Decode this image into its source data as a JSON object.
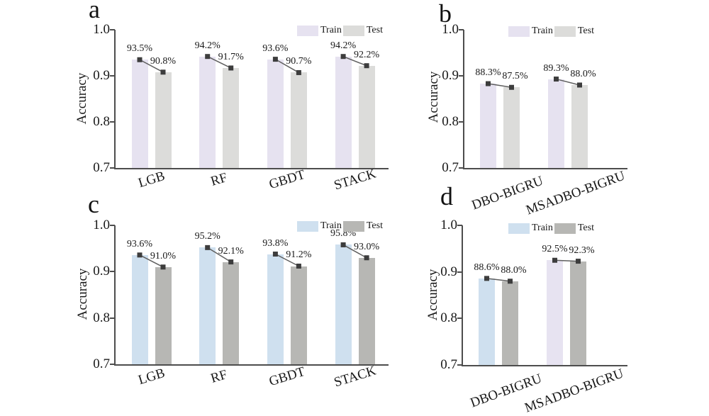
{
  "figure_title": "",
  "styles": {
    "axis_color": "#4d4d4d",
    "marker_color": "#3d3d3d",
    "connector_color": "#5f5f5f",
    "text_color": "#191919",
    "train_lavender": "#e6e2f0",
    "test_light_gray": "#dcdcda",
    "train_blue": "#cfe0ef",
    "test_dark_gray": "#b7b7b4"
  },
  "chart_data": [
    {
      "type": "bar",
      "panel_label": "a",
      "ylabel": "Accuracy",
      "ylim": [
        0.7,
        1.0
      ],
      "yticks": [
        "1.0",
        "0.9",
        "0.8",
        "0.7"
      ],
      "grid": false,
      "legend_position": "top-right",
      "categories": [
        "LGB",
        "RF",
        "GBDT",
        "STACK"
      ],
      "series": [
        {
          "name": "Train",
          "color": "#e6e2f0",
          "values": [
            93.5,
            94.2,
            93.6,
            94.2
          ],
          "labels": [
            "93.5%",
            "94.2%",
            "93.6%",
            "94.2%"
          ]
        },
        {
          "name": "Test",
          "color": "#dcdcda",
          "values": [
            90.8,
            91.7,
            90.7,
            92.2
          ],
          "labels": [
            "90.8%",
            "91.7%",
            "90.7%",
            "92.2%"
          ]
        }
      ]
    },
    {
      "type": "bar",
      "panel_label": "b",
      "ylabel": "Accuracy",
      "ylim": [
        0.7,
        1.0
      ],
      "yticks": [
        "1.0",
        "0.9",
        "0.8",
        "0.7"
      ],
      "grid": false,
      "legend_position": "top-center",
      "categories": [
        "DBO-BIGRU",
        "MSADBO-BIGRU"
      ],
      "series": [
        {
          "name": "Train",
          "color": "#e6e2f0",
          "values": [
            88.3,
            89.3
          ],
          "labels": [
            "88.3%",
            "89.3%"
          ]
        },
        {
          "name": "Test",
          "color": "#dcdcda",
          "values": [
            87.5,
            88.0
          ],
          "labels": [
            "87.5%",
            "88.0%"
          ]
        }
      ]
    },
    {
      "type": "bar",
      "panel_label": "c",
      "ylabel": "Accuracy",
      "ylim": [
        0.7,
        1.0
      ],
      "yticks": [
        "1.0",
        "0.9",
        "0.8",
        "0.7"
      ],
      "grid": false,
      "legend_position": "top-right",
      "categories": [
        "LGB",
        "RF",
        "GBDT",
        "STACK"
      ],
      "series": [
        {
          "name": "Train",
          "color": "#cfe0ef",
          "values": [
            93.6,
            95.2,
            93.8,
            95.8
          ],
          "labels": [
            "93.6%",
            "95.2%",
            "93.8%",
            "95.8%"
          ]
        },
        {
          "name": "Test",
          "color": "#b7b7b4",
          "values": [
            91.0,
            92.1,
            91.2,
            93.0
          ],
          "labels": [
            "91.0%",
            "92.1%",
            "91.2%",
            "93.0%"
          ]
        }
      ]
    },
    {
      "type": "bar",
      "panel_label": "d",
      "ylabel": "Accuracy",
      "ylim": [
        0.7,
        1.0
      ],
      "yticks": [
        "1.0",
        "0.9",
        "0.8",
        "0.7"
      ],
      "grid": false,
      "legend_position": "top-center",
      "categories": [
        "DBO-BIGRU",
        "MSADBO-BIGRU"
      ],
      "series": [
        {
          "name": "Train",
          "color": "#cfe0ef",
          "colors": [
            "#cfe0ef",
            "#e7e3f1"
          ],
          "values": [
            88.6,
            92.5
          ],
          "labels": [
            "88.6%",
            "92.5%"
          ]
        },
        {
          "name": "Test",
          "color": "#b7b7b4",
          "values": [
            88.0,
            92.3
          ],
          "labels": [
            "88.0%",
            "92.3%"
          ]
        }
      ]
    }
  ]
}
